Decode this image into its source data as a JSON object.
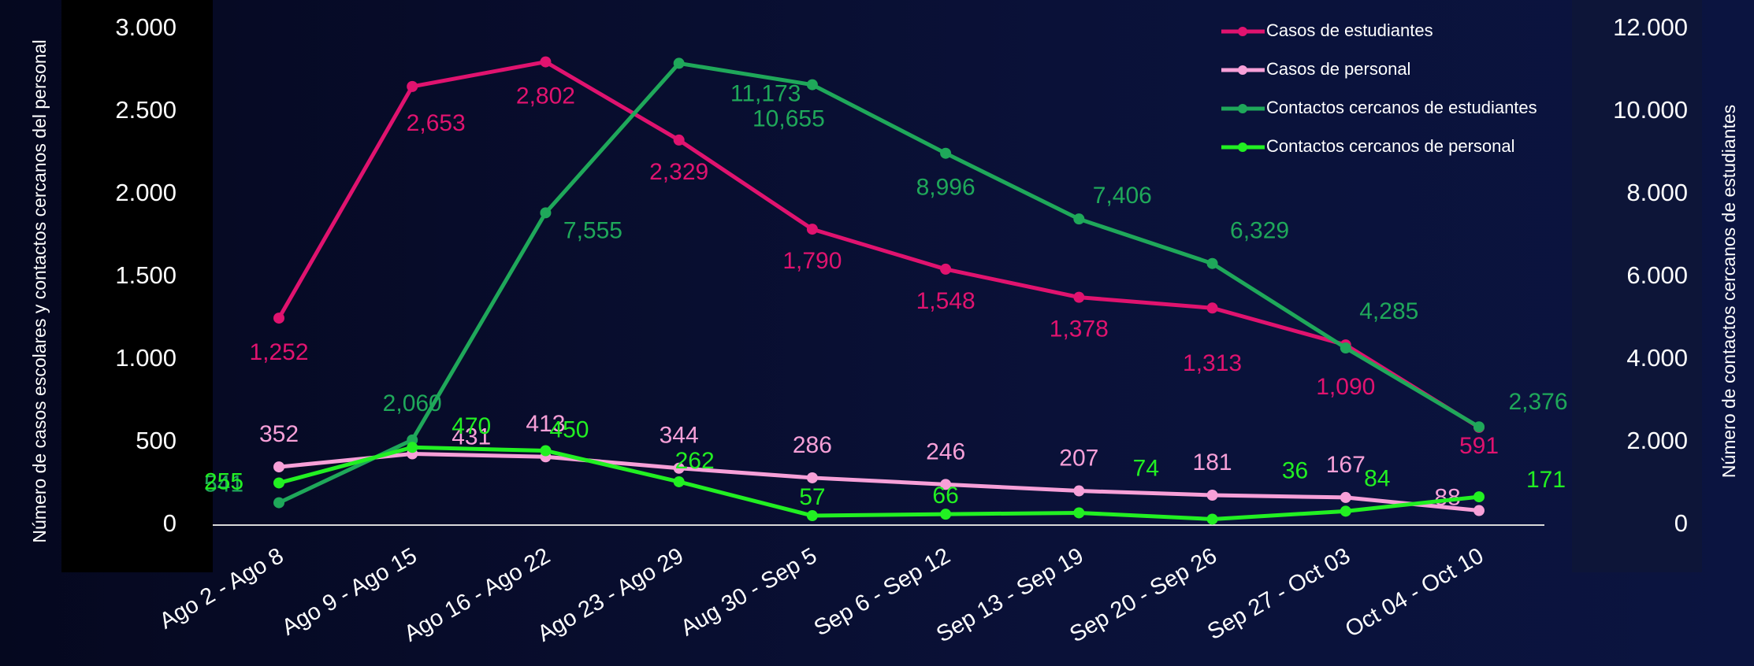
{
  "chart_data": {
    "type": "line",
    "ylabel": "Número de casos escolares y contactos cercanos del personal",
    "y2label": "Número de contactos cercanos de estudiantes",
    "categories": [
      "Ago 2 - Ago 8",
      "Ago 9 - Ago 15",
      "Ago 16 - Ago 22",
      "Ago 23 - Ago 29",
      "Aug 30 - Sep 5",
      "Sep 6 - Sep 12",
      "Sep 13 - Sep 19",
      "Sep 20 - Sep 26",
      "Sep 27 - Oct 03",
      "Oct 04 - Oct 10"
    ],
    "series": [
      {
        "name": "Casos de estudiantes",
        "color": "#e0136f",
        "axis": "y",
        "values": [
          1252,
          2653,
          2802,
          2329,
          1790,
          1548,
          1378,
          1313,
          1090,
          591
        ],
        "value_labels": [
          "1,252",
          "2,653",
          "2,802",
          "2,329",
          "1,790",
          "1,548",
          "1,378",
          "1,313",
          "1,090",
          "591"
        ]
      },
      {
        "name": "Casos de personal",
        "color": "#f7a0d8",
        "axis": "y",
        "values": [
          352,
          431,
          413,
          344,
          286,
          246,
          207,
          181,
          167,
          88
        ]
      },
      {
        "name": "Contactos cercanos de estudiantes",
        "color": "#1fa85a",
        "axis": "y2",
        "values": [
          541,
          2060,
          7555,
          11173,
          10655,
          8996,
          7406,
          6329,
          4285,
          2376
        ],
        "value_labels": [
          "541",
          "2,060",
          "7,555",
          "11,173",
          "10,655",
          "8,996",
          "7,406",
          "6,329",
          "4,285",
          "2,376"
        ]
      },
      {
        "name": "Contactos cercanos de personal",
        "color": "#22f022",
        "axis": "y",
        "values": [
          255,
          470,
          450,
          262,
          57,
          66,
          74,
          36,
          84,
          171
        ]
      }
    ],
    "ylim": [
      0,
      3000
    ],
    "yticks": [
      0,
      500,
      {
        "value": 1000,
        "label": "1.000"
      },
      {
        "value": 1500,
        "label": "1.500"
      },
      {
        "value": 2000,
        "label": "2.000"
      },
      {
        "value": 2500,
        "label": "2.500"
      },
      {
        "value": 3000,
        "label": "3.000"
      }
    ],
    "y2lim": [
      0,
      12000
    ],
    "y2ticks": [
      0,
      {
        "value": 2000,
        "label": "2.000"
      },
      {
        "value": 4000,
        "label": "4.000"
      },
      {
        "value": 6000,
        "label": "6.000"
      },
      {
        "value": 8000,
        "label": "8.000"
      },
      {
        "value": 10000,
        "label": "10.000"
      },
      {
        "value": 12000,
        "label": "12.000"
      }
    ],
    "legend": "top-right"
  }
}
